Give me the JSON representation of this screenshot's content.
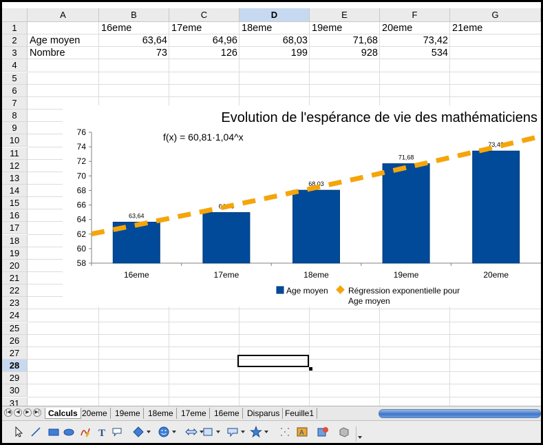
{
  "sheet": {
    "columns": [
      "A",
      "B",
      "C",
      "D",
      "E",
      "F",
      "G"
    ],
    "selected_column": "D",
    "rows": [
      "1",
      "2",
      "3",
      "4",
      "5",
      "6",
      "7",
      "8",
      "9",
      "10",
      "11",
      "12",
      "13",
      "14",
      "15",
      "16",
      "17",
      "18",
      "19",
      "20",
      "21",
      "22",
      "23",
      "24",
      "25",
      "26",
      "27",
      "28",
      "29",
      "30",
      "31"
    ],
    "selected_row": "28",
    "cells": {
      "B1": "16eme",
      "C1": "17eme",
      "D1": "18eme",
      "E1": "19eme",
      "F1": "20eme",
      "G1": "21eme",
      "A2": "Age moyen",
      "B2": "63,64",
      "C2": "64,96",
      "D2": "68,03",
      "E2": "71,68",
      "F2": "73,42",
      "A3": "Nombre",
      "B3": "73",
      "C3": "126",
      "D3": "199",
      "E3": "928",
      "F3": "534"
    }
  },
  "chart_data": {
    "type": "bar",
    "title": "Evolution de l'espérance de vie des mathématiciens",
    "categories": [
      "16eme",
      "17eme",
      "18eme",
      "19eme",
      "20eme"
    ],
    "series": [
      {
        "name": "Age moyen",
        "values": [
          63.64,
          64.96,
          68.03,
          71.68,
          73.42
        ],
        "color": "#004a99"
      }
    ],
    "data_labels": [
      "63,64",
      "64,96",
      "68,03",
      "71,68",
      "73,42"
    ],
    "trendline": {
      "name": "Régression exponentielle pour Age moyen",
      "legend_line1": "Régression exponentielle pour",
      "legend_line2": "Age moyen",
      "equation": "f(x) = 60,81·1,04^x",
      "a": 60.81,
      "b": 1.04,
      "color": "#f5a50a"
    },
    "ylim": [
      58,
      76
    ],
    "yticks": [
      "58",
      "60",
      "62",
      "64",
      "66",
      "68",
      "70",
      "72",
      "74",
      "76"
    ],
    "grid": false,
    "legend_position": "bottom"
  },
  "tabs": [
    "Calculs",
    "20eme",
    "19eme",
    "18eme",
    "17eme",
    "16eme",
    "Disparus",
    "Feuille1"
  ],
  "active_tab": "Calculs",
  "colors": {
    "header_bg": "#ebebeb",
    "selected_header": "#c7d9f0",
    "bar": "#004a99",
    "trend": "#f5a50a"
  },
  "toolbar": {
    "tools": [
      "select-icon",
      "line-icon",
      "rectangle-icon",
      "ellipse-icon",
      "freeform-icon",
      "text-icon",
      "callout-icon",
      "basic-shapes-icon",
      "symbol-shapes-icon",
      "block-arrows-icon",
      "flowchart-icon",
      "callouts-icon",
      "stars-icon",
      "points-icon",
      "fontwork-icon",
      "from-file-icon",
      "extrusion-icon"
    ]
  }
}
